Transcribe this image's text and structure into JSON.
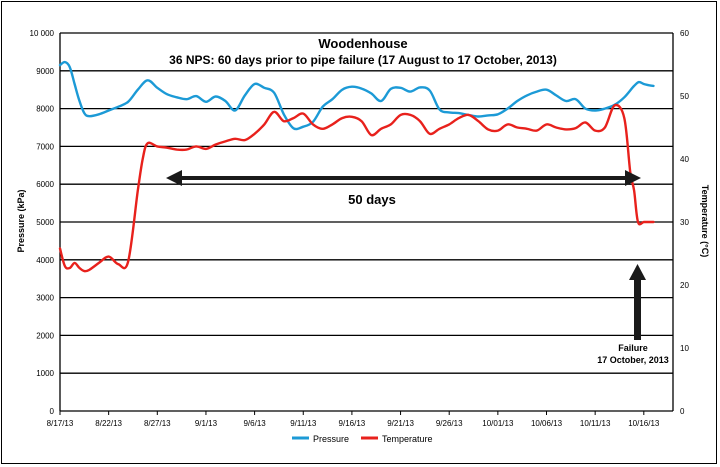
{
  "chart_data": {
    "type": "line",
    "title": "Woodenhouse",
    "subtitle": "36 NPS: 60 days prior to pipe failure (17 August to 17 October, 2013)",
    "ylabel_left": "Pressure (kPa)",
    "ylabel_right": "Temperature (°C)",
    "ylim_left": [
      0,
      10000
    ],
    "ylim_right": [
      0,
      60
    ],
    "y_ticks_left": [
      "0",
      "1000",
      "2000",
      "3000",
      "4000",
      "5000",
      "6000",
      "7000",
      "8000",
      "9000",
      "10 000"
    ],
    "y_ticks_right": [
      "0",
      "10",
      "20",
      "30",
      "40",
      "50",
      "60"
    ],
    "x_ticks": [
      "8/17/13",
      "8/22/13",
      "8/27/13",
      "9/1/13",
      "9/6/13",
      "9/11/13",
      "9/16/13",
      "9/21/13",
      "9/26/13",
      "10/01/13",
      "10/06/13",
      "10/11/13",
      "10/16/13"
    ],
    "grid": "horizontal",
    "legend_position": "bottom",
    "series": [
      {
        "name": "Pressure",
        "color": "#1c9ad6",
        "axis": "left",
        "x": [
          0,
          0.5,
          1,
          1.5,
          2,
          2.5,
          3,
          4,
          5,
          6,
          7,
          8,
          9,
          10,
          11,
          12,
          13,
          14,
          15,
          16,
          17,
          18,
          19,
          20,
          21,
          22,
          23,
          24,
          25,
          26,
          27,
          28,
          29,
          30,
          31,
          32,
          33,
          34,
          35,
          36,
          37,
          38,
          39,
          40,
          41,
          42,
          43,
          44,
          45,
          46,
          47,
          48,
          49,
          50,
          51,
          52,
          53,
          54,
          55,
          56,
          57,
          58,
          59,
          59.5,
          60,
          60.5,
          61
        ],
        "y": [
          9150,
          9230,
          9100,
          8650,
          8200,
          7880,
          7800,
          7850,
          7950,
          8050,
          8180,
          8500,
          8750,
          8550,
          8380,
          8300,
          8250,
          8330,
          8180,
          8320,
          8200,
          7950,
          8350,
          8650,
          8550,
          8420,
          7850,
          7480,
          7520,
          7650,
          8050,
          8250,
          8500,
          8580,
          8530,
          8400,
          8200,
          8520,
          8550,
          8450,
          8560,
          8480,
          7980,
          7900,
          7880,
          7830,
          7790,
          7820,
          7850,
          8000,
          8200,
          8350,
          8450,
          8500,
          8350,
          8200,
          8250,
          8000,
          7950,
          8000,
          8100,
          8300,
          8600,
          8700,
          8650,
          8620,
          8600
        ]
      },
      {
        "name": "Temperature",
        "color": "#e8211c",
        "axis": "right",
        "x": [
          0,
          0.5,
          1,
          1.5,
          2,
          2.5,
          3,
          4,
          5,
          6,
          7,
          8,
          8.5,
          9,
          10,
          11,
          12,
          13,
          14,
          15,
          16,
          17,
          18,
          19,
          20,
          21,
          22,
          23,
          24,
          25,
          26,
          27,
          28,
          29,
          30,
          31,
          32,
          33,
          34,
          35,
          36,
          37,
          38,
          39,
          40,
          41,
          42,
          43,
          44,
          45,
          46,
          47,
          48,
          49,
          50,
          51,
          52,
          53,
          54,
          55,
          56,
          57,
          58,
          58.6,
          59,
          59.4,
          60,
          60.5,
          61
        ],
        "y": [
          25.8,
          23.0,
          22.7,
          23.5,
          22.7,
          22.2,
          22.4,
          23.5,
          24.5,
          23.3,
          23.7,
          35.0,
          40.0,
          42.5,
          42.0,
          41.8,
          41.5,
          41.5,
          42.0,
          41.6,
          42.3,
          42.8,
          43.2,
          43.0,
          44.0,
          45.5,
          47.5,
          46.0,
          46.5,
          47.2,
          45.5,
          44.8,
          45.5,
          46.5,
          46.7,
          46.0,
          43.8,
          44.8,
          45.5,
          47.0,
          47.0,
          46.0,
          44.0,
          44.8,
          45.5,
          46.5,
          47.0,
          46.0,
          44.7,
          44.5,
          45.5,
          45.0,
          44.8,
          44.5,
          45.5,
          45.0,
          44.7,
          44.9,
          45.8,
          44.5,
          45.0,
          48.5,
          46.5,
          38.0,
          35.0,
          30.0,
          30.0,
          30.0,
          30.0
        ]
      }
    ],
    "annotations": {
      "span_label": "50 days",
      "failure_line1": "Failure",
      "failure_line2": "17 October, 2013"
    }
  }
}
